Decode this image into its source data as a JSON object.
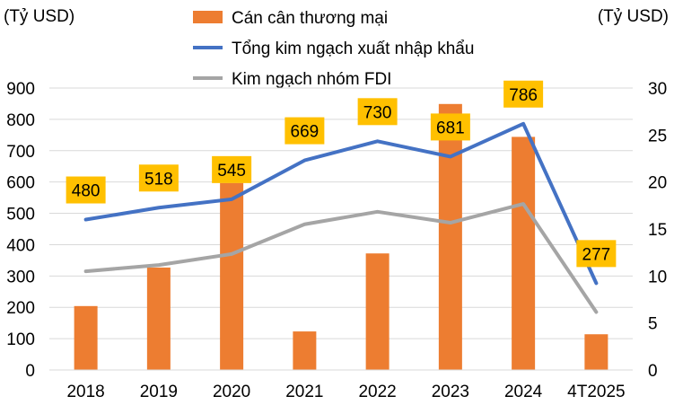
{
  "chart_data": {
    "type": "bar",
    "categories": [
      "2018",
      "2019",
      "2020",
      "2021",
      "2022",
      "2023",
      "2024",
      "4T2025"
    ],
    "y_left": {
      "label": "(Tỷ USD)",
      "min": 0,
      "max": 900,
      "ticks": [
        "0",
        "100",
        "200",
        "300",
        "400",
        "500",
        "600",
        "700",
        "800",
        "900"
      ]
    },
    "y_right": {
      "label": "(Tỷ USD)",
      "min": 0,
      "max": 30,
      "ticks": [
        "0",
        "5",
        "10",
        "15",
        "20",
        "25",
        "30"
      ]
    },
    "grid": true,
    "legend_position": "top",
    "series": [
      {
        "name": "Cán cân thương mại",
        "type": "bar",
        "axis": "right",
        "color": "#ED7D31",
        "values": [
          6.8,
          10.9,
          19.9,
          4.1,
          12.4,
          28.3,
          24.8,
          3.8
        ]
      },
      {
        "name": "Tổng kim ngạch xuất nhập khẩu",
        "type": "line",
        "axis": "left",
        "color": "#4472C4",
        "values": [
          480,
          518,
          545,
          669,
          730,
          681,
          786,
          277
        ],
        "labels": [
          "480",
          "518",
          "545",
          "669",
          "730",
          "681",
          "786",
          "277"
        ],
        "label_color": "#FFC000"
      },
      {
        "name": "Kim ngạch nhóm FDI",
        "type": "line",
        "axis": "left",
        "color": "#A5A5A5",
        "values": [
          315,
          335,
          370,
          465,
          505,
          470,
          530,
          185
        ]
      }
    ]
  }
}
